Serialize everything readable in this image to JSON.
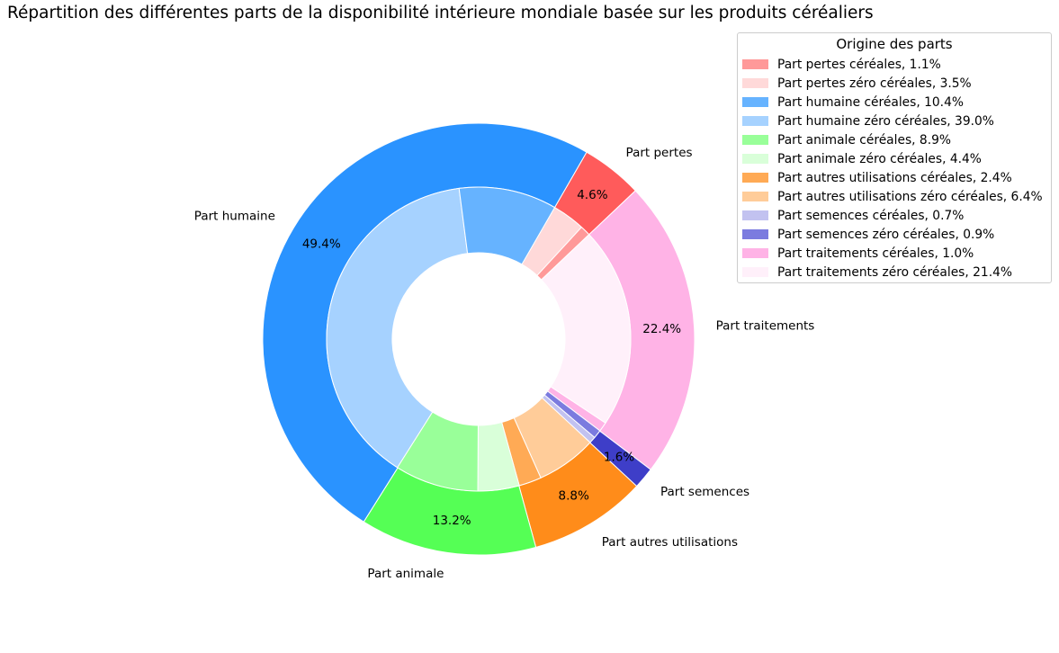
{
  "chart_data": {
    "type": "pie",
    "title": "Répartition des différentes parts de la disponibilité intérieure mondiale basée sur les produits céréaliers",
    "legend": {
      "title": "Origine des parts",
      "placement": "upper-right"
    },
    "outer_ring": [
      {
        "label": "Part pertes",
        "pct_label": "4.6%",
        "value": 4.6,
        "color": "#ff5b5b"
      },
      {
        "label": "Part traitements",
        "pct_label": "22.4%",
        "value": 22.4,
        "color": "#ffb3e6"
      },
      {
        "label": "Part semences",
        "pct_label": "1.6%",
        "value": 1.6,
        "color": "#3e3ec8"
      },
      {
        "label": "Part autres utilisations",
        "pct_label": "8.8%",
        "value": 8.8,
        "color": "#ff8c1a"
      },
      {
        "label": "Part animale",
        "pct_label": "13.2%",
        "value": 13.2,
        "color": "#55ff55"
      },
      {
        "label": "Part humaine",
        "pct_label": "49.4%",
        "value": 49.4,
        "color": "#2a93ff"
      }
    ],
    "inner_ring": [
      {
        "label": "Part pertes zéro céréales, 3.5%",
        "value": 3.5,
        "color": "#ffd9d9"
      },
      {
        "label": "Part pertes céréales, 1.1%",
        "value": 1.1,
        "color": "#ff9999"
      },
      {
        "label": "Part traitements zéro céréales, 21.4%",
        "value": 21.4,
        "color": "#fff0fa"
      },
      {
        "label": "Part traitements céréales, 1.0%",
        "value": 1.0,
        "color": "#ffb3e6"
      },
      {
        "label": "Part semences zéro céréales, 0.9%",
        "value": 0.9,
        "color": "#7b7bdf"
      },
      {
        "label": "Part semences céréales, 0.7%",
        "value": 0.7,
        "color": "#c2c2f0"
      },
      {
        "label": "Part autres utilisations zéro céréales, 6.4%",
        "value": 6.4,
        "color": "#ffcc99"
      },
      {
        "label": "Part autres utilisations céréales, 2.4%",
        "value": 2.4,
        "color": "#ffaa55"
      },
      {
        "label": "Part animale zéro céréales, 4.4%",
        "value": 4.4,
        "color": "#d9ffd9"
      },
      {
        "label": "Part animale céréales, 8.9%",
        "value": 8.9,
        "color": "#99ff99"
      },
      {
        "label": "Part humaine zéro céréales, 39.0%",
        "value": 39.0,
        "color": "#a6d2ff"
      },
      {
        "label": "Part humaine céréales, 10.4%",
        "value": 10.4,
        "color": "#66b3ff"
      }
    ],
    "legend_items": [
      {
        "label": "Part pertes céréales, 1.1%",
        "color": "#ff9999"
      },
      {
        "label": "Part pertes zéro céréales, 3.5%",
        "color": "#ffd9d9"
      },
      {
        "label": "Part humaine céréales, 10.4%",
        "color": "#66b3ff"
      },
      {
        "label": "Part humaine zéro céréales, 39.0%",
        "color": "#a6d2ff"
      },
      {
        "label": "Part animale céréales, 8.9%",
        "color": "#99ff99"
      },
      {
        "label": "Part animale zéro céréales, 4.4%",
        "color": "#d9ffd9"
      },
      {
        "label": "Part autres utilisations céréales, 2.4%",
        "color": "#ffaa55"
      },
      {
        "label": "Part autres utilisations zéro céréales, 6.4%",
        "color": "#ffcc99"
      },
      {
        "label": "Part semences céréales, 0.7%",
        "color": "#c2c2f0"
      },
      {
        "label": "Part semences zéro céréales, 0.9%",
        "color": "#7b7bdf"
      },
      {
        "label": "Part traitements céréales, 1.0%",
        "color": "#ffb3e6"
      },
      {
        "label": "Part traitements zéro céréales, 21.4%",
        "color": "#fff0fa"
      }
    ]
  }
}
